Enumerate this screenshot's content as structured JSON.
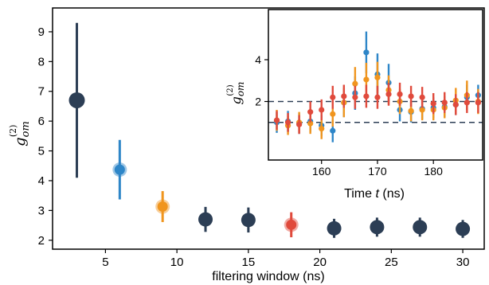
{
  "colors": {
    "navy": "#2c3e55",
    "blue": "#2e86c8",
    "orange": "#f0951e",
    "red": "#e04a3c",
    "dashed_line": "#2c3e55"
  },
  "chart_data": [
    {
      "type": "scatter",
      "title": "",
      "xlabel": "filtering window (ns)",
      "ylabel_parts": {
        "base": "g",
        "sup": "(2)",
        "sub": "om"
      },
      "xlim": [
        1.3,
        31.5
      ],
      "ylim": [
        1.7,
        9.8
      ],
      "xticks": [
        5,
        10,
        15,
        20,
        25,
        30
      ],
      "yticks": [
        2,
        3,
        4,
        5,
        6,
        7,
        8,
        9
      ],
      "grid": false,
      "points": [
        {
          "x": 3,
          "y": 6.7,
          "err": 2.6,
          "color": "navy",
          "size": "large"
        },
        {
          "x": 6,
          "y": 4.37,
          "err": 1.0,
          "color": "blue",
          "size": "ring"
        },
        {
          "x": 9,
          "y": 3.13,
          "err": 0.52,
          "color": "orange",
          "size": "ring"
        },
        {
          "x": 12,
          "y": 2.7,
          "err": 0.42,
          "color": "navy",
          "size": "medium"
        },
        {
          "x": 15,
          "y": 2.68,
          "err": 0.42,
          "color": "navy",
          "size": "medium"
        },
        {
          "x": 18,
          "y": 2.52,
          "err": 0.42,
          "color": "red",
          "size": "ring"
        },
        {
          "x": 21,
          "y": 2.4,
          "err": 0.32,
          "color": "navy",
          "size": "medium"
        },
        {
          "x": 24,
          "y": 2.44,
          "err": 0.32,
          "color": "navy",
          "size": "medium"
        },
        {
          "x": 27,
          "y": 2.44,
          "err": 0.32,
          "color": "navy",
          "size": "medium"
        },
        {
          "x": 30,
          "y": 2.38,
          "err": 0.3,
          "color": "navy",
          "size": "medium"
        }
      ]
    },
    {
      "type": "scatter",
      "title": "",
      "xlabel_prefix": "Time ",
      "xlabel_var": "t",
      "xlabel_suffix": " (ns)",
      "ylabel_parts": {
        "base": "g",
        "sup": "(2)",
        "sub": "om"
      },
      "xlim": [
        150.5,
        188.8
      ],
      "ylim": [
        -0.8,
        6.4
      ],
      "xticks": [
        160,
        170,
        180
      ],
      "yticks": [
        2,
        4
      ],
      "grid": false,
      "hlines": [
        2,
        1
      ],
      "series": [
        {
          "color": "blue",
          "x": [
            152,
            154,
            156,
            158,
            160,
            162,
            164,
            166,
            168,
            170,
            172,
            174,
            176,
            178,
            180,
            182,
            184,
            186,
            188
          ],
          "y": [
            1.0,
            1.05,
            0.95,
            1.05,
            0.85,
            0.6,
            1.95,
            2.4,
            4.35,
            3.3,
            2.9,
            1.6,
            1.5,
            1.65,
            1.7,
            1.75,
            1.85,
            2.2,
            2.3
          ],
          "err": [
            0.5,
            0.5,
            0.5,
            0.5,
            0.5,
            0.55,
            0.7,
            0.8,
            1.0,
            1.0,
            0.9,
            0.55,
            0.5,
            0.5,
            0.5,
            0.5,
            0.5,
            0.6,
            0.5
          ]
        },
        {
          "color": "orange",
          "x": [
            152,
            154,
            156,
            158,
            160,
            162,
            164,
            166,
            168,
            170,
            172,
            174,
            176,
            178,
            180,
            182,
            184,
            186,
            188
          ],
          "y": [
            1.1,
            0.85,
            1.0,
            0.95,
            0.7,
            1.4,
            1.95,
            2.85,
            3.05,
            3.15,
            2.55,
            2.0,
            1.55,
            1.6,
            1.6,
            1.7,
            2.05,
            2.3,
            2.0
          ],
          "err": [
            0.5,
            0.45,
            0.5,
            0.5,
            0.5,
            0.6,
            0.7,
            0.8,
            0.8,
            0.75,
            0.7,
            0.6,
            0.5,
            0.5,
            0.5,
            0.5,
            0.6,
            0.7,
            0.6
          ]
        },
        {
          "color": "red",
          "x": [
            152,
            154,
            156,
            158,
            160,
            162,
            164,
            166,
            168,
            170,
            172,
            174,
            176,
            178,
            180,
            182,
            184,
            186,
            188
          ],
          "y": [
            1.1,
            1.0,
            0.9,
            1.5,
            1.6,
            2.2,
            2.25,
            2.2,
            2.25,
            2.2,
            2.35,
            2.35,
            2.25,
            2.2,
            1.9,
            1.95,
            1.85,
            1.95,
            1.95
          ],
          "err": [
            0.45,
            0.45,
            0.45,
            0.5,
            0.5,
            0.55,
            0.55,
            0.55,
            0.55,
            0.55,
            0.55,
            0.55,
            0.5,
            0.5,
            0.5,
            0.5,
            0.5,
            0.5,
            0.5
          ]
        }
      ]
    }
  ]
}
